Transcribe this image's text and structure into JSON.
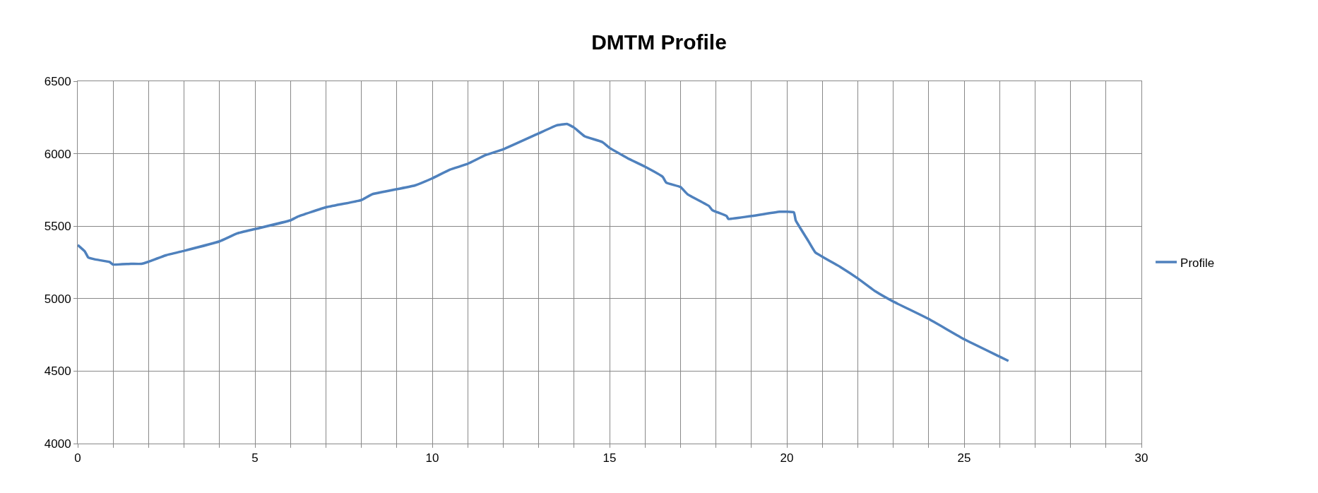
{
  "chart_data": {
    "type": "line",
    "title": "DMTM Profile",
    "legend": "right",
    "grid": true,
    "marker": "none",
    "line_style": "solid",
    "xlim": [
      0,
      30
    ],
    "ylim": [
      4000,
      6500
    ],
    "xticks": [
      0,
      {
        "value": 1,
        "label": null
      },
      {
        "value": 2,
        "label": null
      },
      {
        "value": 3,
        "label": null
      },
      {
        "value": 4,
        "label": null
      },
      5,
      {
        "value": 6,
        "label": null
      },
      {
        "value": 7,
        "label": null
      },
      {
        "value": 8,
        "label": null
      },
      {
        "value": 9,
        "label": null
      },
      10,
      {
        "value": 11,
        "label": null
      },
      {
        "value": 12,
        "label": null
      },
      {
        "value": 13,
        "label": null
      },
      {
        "value": 14,
        "label": null
      },
      15,
      {
        "value": 16,
        "label": null
      },
      {
        "value": 17,
        "label": null
      },
      {
        "value": 18,
        "label": null
      },
      {
        "value": 19,
        "label": null
      },
      20,
      {
        "value": 21,
        "label": null
      },
      {
        "value": 22,
        "label": null
      },
      {
        "value": 23,
        "label": null
      },
      {
        "value": 24,
        "label": null
      },
      25,
      {
        "value": 26,
        "label": null
      },
      {
        "value": 27,
        "label": null
      },
      {
        "value": 28,
        "label": null
      },
      {
        "value": 29,
        "label": null
      },
      30
    ],
    "yticks": [
      4000,
      4500,
      5000,
      5500,
      6000,
      6500
    ],
    "x": [
      0,
      0.2,
      0.3,
      0.5,
      0.9,
      1.0,
      1.5,
      1.8,
      2,
      2.5,
      3,
      4,
      4.5,
      5,
      6,
      6.2,
      7,
      8,
      8.3,
      9.5,
      10,
      10.5,
      11,
      11.5,
      12,
      13,
      13.5,
      13.8,
      14,
      14.3,
      14.8,
      15,
      15.5,
      16,
      16.5,
      16.6,
      17,
      17.2,
      17.8,
      17.9,
      18.3,
      18.35,
      19,
      19.8,
      20.2,
      20.25,
      20.6,
      20.8,
      21.5,
      22,
      22.5,
      23,
      24,
      25,
      26,
      26.25
    ],
    "series": [
      {
        "name": "Profile",
        "color": "#4f81bd",
        "values": [
          5370,
          5326,
          5283,
          5270,
          5253,
          5235,
          5240,
          5240,
          5255,
          5300,
          5330,
          5395,
          5450,
          5480,
          5540,
          5565,
          5630,
          5680,
          5720,
          5780,
          5830,
          5890,
          5930,
          5990,
          6030,
          6140,
          6195,
          6205,
          6180,
          6120,
          6080,
          6040,
          5970,
          5910,
          5840,
          5800,
          5770,
          5720,
          5640,
          5610,
          5570,
          5550,
          5570,
          5600,
          5595,
          5540,
          5400,
          5320,
          5220,
          5140,
          5050,
          4980,
          4860,
          4720,
          4600,
          4570
        ]
      }
    ]
  }
}
